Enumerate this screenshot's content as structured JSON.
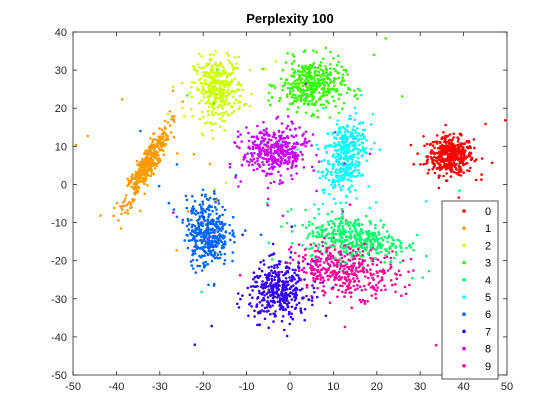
{
  "chart_data": {
    "type": "scatter",
    "title": "Perplexity 100",
    "xlabel": "",
    "ylabel": "",
    "xlim": [
      -50,
      50
    ],
    "ylim": [
      -50,
      40
    ],
    "xticks": [
      -50,
      -40,
      -30,
      -20,
      -10,
      0,
      10,
      20,
      30,
      40,
      50
    ],
    "yticks": [
      -50,
      -40,
      -30,
      -20,
      -10,
      0,
      10,
      20,
      30,
      40
    ],
    "grid": false,
    "legend_position": "bottom-right",
    "series": [
      {
        "name": "0",
        "color": "#ff0000",
        "clusters": [
          {
            "center": [
              37,
              7.5
            ],
            "spread": [
              3.5,
              3.3
            ],
            "n": 420
          }
        ]
      },
      {
        "name": "1",
        "color": "#ff9900",
        "clusters": [
          {
            "center": [
              -33,
              5
            ],
            "spread": [
              3.5,
              7
            ],
            "n": 380,
            "corr": 0.9
          }
        ]
      },
      {
        "name": "2",
        "color": "#ccff00",
        "clusters": [
          {
            "center": [
              -16.5,
              25
            ],
            "spread": [
              3.7,
              5.5
            ],
            "n": 340
          }
        ]
      },
      {
        "name": "3",
        "color": "#33ff00",
        "clusters": [
          {
            "center": [
              5,
              26
            ],
            "spread": [
              5,
              4.5
            ],
            "n": 380
          }
        ]
      },
      {
        "name": "4",
        "color": "#00ff66",
        "clusters": [
          {
            "center": [
              15,
              -14
            ],
            "spread": [
              8,
              4
            ],
            "n": 380,
            "corr": -0.3
          }
        ]
      },
      {
        "name": "5",
        "color": "#00ffff",
        "clusters": [
          {
            "center": [
              12.5,
              7
            ],
            "spread": [
              3.3,
              7
            ],
            "n": 360,
            "corr": 0.4
          }
        ]
      },
      {
        "name": "6",
        "color": "#0066ff",
        "clusters": [
          {
            "center": [
              -19,
              -12.5
            ],
            "spread": [
              3.2,
              6
            ],
            "n": 380
          }
        ]
      },
      {
        "name": "7",
        "color": "#3300ff",
        "clusters": [
          {
            "center": [
              -2.5,
              -28
            ],
            "spread": [
              4.5,
              5
            ],
            "n": 380
          }
        ]
      },
      {
        "name": "8",
        "color": "#cc00ff",
        "clusters": [
          {
            "center": [
              -3.5,
              8.5
            ],
            "spread": [
              5,
              4.5
            ],
            "n": 380
          }
        ]
      },
      {
        "name": "9",
        "color": "#ff0099",
        "clusters": [
          {
            "center": [
              13,
              -22.5
            ],
            "spread": [
              8,
              4.5
            ],
            "n": 380,
            "corr": -0.2
          }
        ]
      }
    ]
  }
}
